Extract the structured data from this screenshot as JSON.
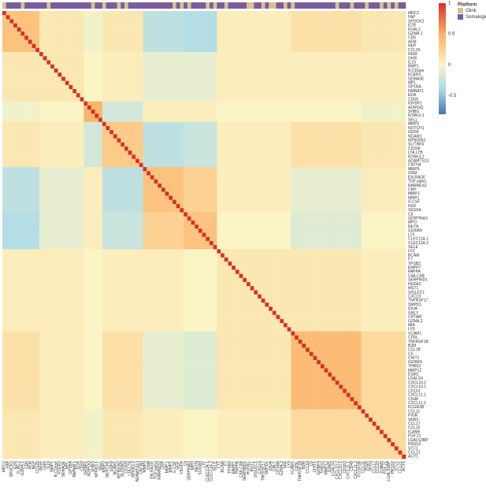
{
  "chart_data": {
    "type": "heatmap",
    "labels": [
      "MRC2",
      "FAP",
      "SPOCK2",
      "EZR",
      "FURL2",
      "GZMA.1",
      "CD6",
      "AFM",
      "NEP",
      "CCL25",
      "INSR",
      "GHR",
      "IL19",
      "BMP1",
      "N.CDase",
      "FCER2",
      "SEMA3E",
      "MPL",
      "GP1BA",
      "NMNAT1",
      "EDA",
      "CD69",
      "IGFBP1",
      "ADIPOQ",
      "SHBG",
      "NTRK3.1",
      "SELL",
      "MMP2",
      "NOTCH1",
      "GDF8",
      "NCAM1",
      "WFIKKN2",
      "SLITRK5",
      "CD209",
      "LTA.LTB",
      "NTRK3.2",
      "ADAMTS13",
      "CNTN4",
      "MMP9",
      "OSM",
      "EN.RAGE",
      "TGF.alpha",
      "RARRES2",
      "CRP",
      "MMP.1",
      "MMP1",
      "G.CSF",
      "HGF",
      "VEGFA",
      "C9",
      "SERPINA3",
      "MPO",
      "RETN",
      "S100A9",
      "LTF",
      "CLEC11A.1",
      "CLEC11A.2",
      "SELE",
      "LYZ",
      "BCAM",
      "F7",
      "TPSB2",
      "ENPP7",
      "PAPPA",
      "C4A.C4B",
      "SERPIND1",
      "HGFAC",
      "MST1",
      "SIGLEC1",
      "CXCL9",
      "TNFRSF17",
      "SMPD1",
      "IDUA",
      "GNLY",
      "CRTAM",
      "GZMA.2",
      "MIA",
      "LY9",
      "VCAM1",
      "CD5L",
      "TNFRSF1B",
      "B2M",
      "CCL18",
      "C5",
      "CHIT1",
      "IGFBP4",
      "THBS2",
      "MMP12",
      "ESM1",
      "LGALS4",
      "CXCL10.2",
      "CXCL10.1",
      "CD163",
      "CXCL11.1",
      "CD48",
      "CXCL11.2",
      "FCGR3B",
      "CCL11",
      "PIGR",
      "SKR3",
      "CCL17",
      "CCL22",
      "ICAM5",
      "FGF.21",
      "LGALS3BP",
      "PRSS2",
      "STC1",
      "CCL21",
      "ACY1"
    ],
    "platform": [
      "Olink",
      "Somalogic",
      "Somalogic",
      "Somalogic",
      "Somalogic",
      "Olink",
      "Somalogic",
      "Somalogic",
      "Somalogic",
      "Somalogic",
      "Somalogic",
      "Somalogic",
      "Olink",
      "Somalogic",
      "Somalogic",
      "Somalogic",
      "Somalogic",
      "Somalogic",
      "Somalogic",
      "Somalogic",
      "Somalogic",
      "Somalogic",
      "Somalogic",
      "Somalogic",
      "Olink",
      "Somalogic",
      "Somalogic",
      "Olink",
      "Somalogic",
      "Somalogic",
      "Somalogic",
      "Olink",
      "Somalogic",
      "Olink",
      "Somalogic",
      "Somalogic",
      "Somalogic",
      "Somalogic",
      "Somalogic",
      "Somalogic",
      "Somalogic",
      "Somalogic",
      "Somalogic",
      "Somalogic",
      "Somalogic",
      "Somalogic",
      "Olink",
      "Somalogic",
      "Olink",
      "Somalogic",
      "Olink",
      "Somalogic",
      "Somalogic",
      "Somalogic",
      "Somalogic",
      "Olink",
      "Somalogic",
      "Olink",
      "Somalogic",
      "Somalogic",
      "Olink",
      "Somalogic",
      "Somalogic",
      "Somalogic",
      "Somalogic",
      "Somalogic",
      "Olink",
      "Olink",
      "Somalogic",
      "Somalogic",
      "Olink",
      "Somalogic",
      "Olink",
      "Olink",
      "Somalogic",
      "Somalogic",
      "Olink",
      "Somalogic",
      "Olink",
      "Somalogic",
      "Somalogic",
      "Somalogic",
      "Somalogic",
      "Somalogic",
      "Somalogic",
      "Somalogic",
      "Somalogic",
      "Somalogic",
      "Somalogic",
      "Somalogic",
      "Olink",
      "Somalogic",
      "Somalogic",
      "Somalogic",
      "Olink",
      "Somalogic",
      "Somalogic",
      "Somalogic",
      "Olink",
      "Somalogic",
      "Somalogic",
      "Somalogic",
      "Olink",
      "Somalogic",
      "Olink",
      "Somalogic",
      "Olink",
      "Somalogic",
      "Somalogic"
    ],
    "block_starts": [
      0,
      10,
      22,
      27,
      38,
      49,
      58,
      78,
      97
    ],
    "values": [
      [
        0.35,
        0.1,
        -0.05,
        0.1,
        -0.3,
        -0.35,
        0.05,
        0.15,
        0.1
      ],
      [
        0.1,
        0.1,
        0,
        0.05,
        -0.1,
        -0.1,
        0.05,
        0.05,
        0.05
      ],
      [
        -0.05,
        0,
        0.45,
        -0.2,
        0.05,
        0.05,
        0,
        0,
        -0.05
      ],
      [
        0.1,
        0.05,
        -0.2,
        0.3,
        -0.3,
        -0.25,
        0.05,
        0.15,
        0.1
      ],
      [
        -0.3,
        -0.1,
        0.05,
        -0.3,
        0.35,
        0.25,
        0.05,
        -0.1,
        0.05
      ],
      [
        -0.35,
        -0.1,
        0.05,
        -0.25,
        0.25,
        0.35,
        0,
        -0.15,
        0
      ],
      [
        0.05,
        0.05,
        0,
        0.05,
        0.05,
        0,
        0.1,
        0.1,
        0.05
      ],
      [
        0.15,
        0.05,
        0,
        0.15,
        -0.1,
        -0.15,
        0.1,
        0.4,
        0.2
      ],
      [
        0.1,
        0.05,
        -0.05,
        0.1,
        0.05,
        0,
        0.05,
        0.2,
        0.2
      ]
    ],
    "diagonal_value": 1,
    "colorscale": [
      [
        -0.8,
        "#4575b4"
      ],
      [
        -0.4,
        "#abd9e9"
      ],
      [
        0,
        "#fbf5c6"
      ],
      [
        0.5,
        "#fdae61"
      ],
      [
        1,
        "#d73027"
      ]
    ],
    "zlim": [
      -0.8,
      1
    ],
    "zticks": [
      -0.5,
      0,
      0.5,
      1
    ],
    "legend": {
      "title": "Platform",
      "items": [
        {
          "name": "Olink",
          "color": "#d4c48a"
        },
        {
          "name": "Somalogic",
          "color": "#7a5c9e"
        }
      ]
    }
  }
}
